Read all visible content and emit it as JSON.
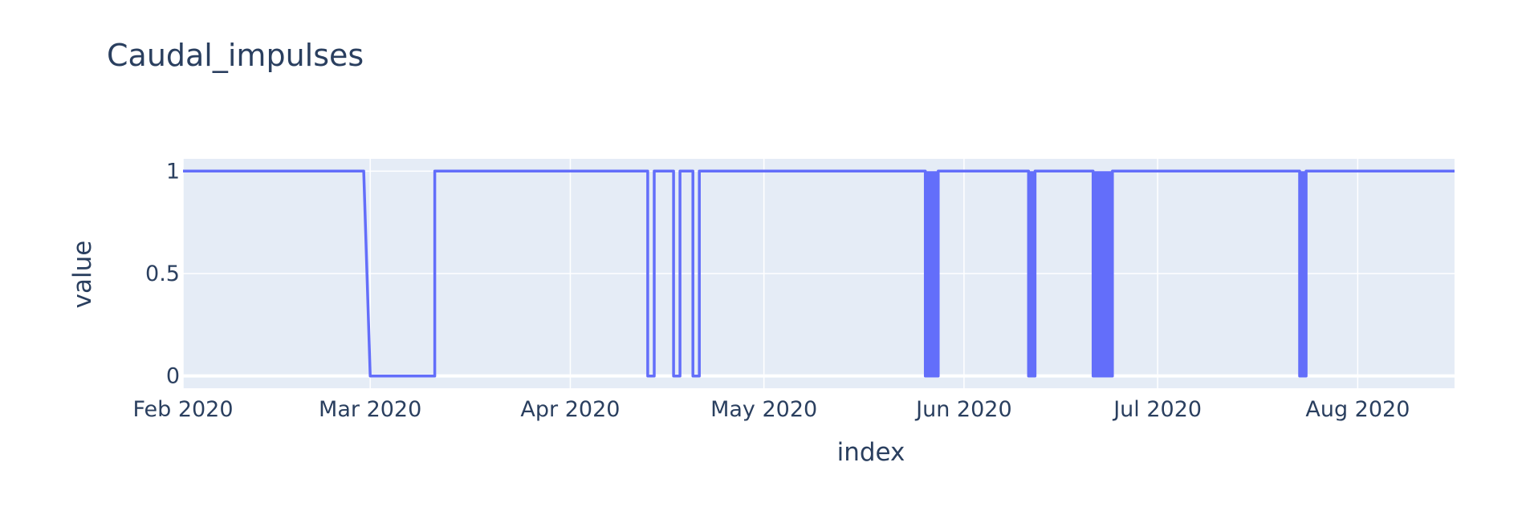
{
  "chart_data": {
    "type": "line",
    "title": "Caudal_impulses",
    "xlabel": "index",
    "ylabel": "value",
    "x_tick_labels": [
      "Feb 2020",
      "Mar 2020",
      "Apr 2020",
      "May 2020",
      "Jun 2020",
      "Jul 2020",
      "Aug 2020"
    ],
    "x_tick_dates": [
      "2020-02-01",
      "2020-03-01",
      "2020-04-01",
      "2020-05-01",
      "2020-06-01",
      "2020-07-01",
      "2020-08-01"
    ],
    "y_tick_labels": [
      "0",
      "0.5",
      "1"
    ],
    "y_ticks": [
      0,
      0.5,
      1
    ],
    "xlim": [
      "2020-02-01",
      "2020-08-16"
    ],
    "ylim": [
      -0.06,
      1.06
    ],
    "grid": true,
    "line_color": "#636efa",
    "plot_background": "#e5ecf6",
    "series": [
      {
        "x": [
          "2020-02-01",
          "2020-02-29",
          "2020-03-01",
          "2020-03-11",
          "2020-03-11",
          "2020-04-13",
          "2020-04-13",
          "2020-04-14",
          "2020-04-14",
          "2020-04-17",
          "2020-04-17",
          "2020-04-18",
          "2020-04-18",
          "2020-04-20",
          "2020-04-20",
          "2020-04-21",
          "2020-04-21",
          "2020-05-26",
          "2020-05-26",
          "2020-05-28",
          "2020-05-28",
          "2020-06-11",
          "2020-06-11",
          "2020-06-12",
          "2020-06-12",
          "2020-06-21",
          "2020-06-21",
          "2020-06-24",
          "2020-06-24",
          "2020-07-23",
          "2020-07-23",
          "2020-07-24",
          "2020-07-24",
          "2020-08-16"
        ],
        "y": [
          1,
          1,
          0,
          0,
          1,
          1,
          0,
          0,
          1,
          1,
          0,
          0,
          1,
          1,
          0,
          0,
          1,
          1,
          0,
          0,
          1,
          1,
          0,
          0,
          1,
          1,
          0,
          0,
          1,
          1,
          0,
          0,
          1,
          1
        ]
      }
    ],
    "dense_bands": [
      [
        "2020-05-26",
        "2020-05-28"
      ],
      [
        "2020-06-11",
        "2020-06-12"
      ],
      [
        "2020-06-21",
        "2020-06-24"
      ],
      [
        "2020-07-23",
        "2020-07-24"
      ]
    ]
  }
}
